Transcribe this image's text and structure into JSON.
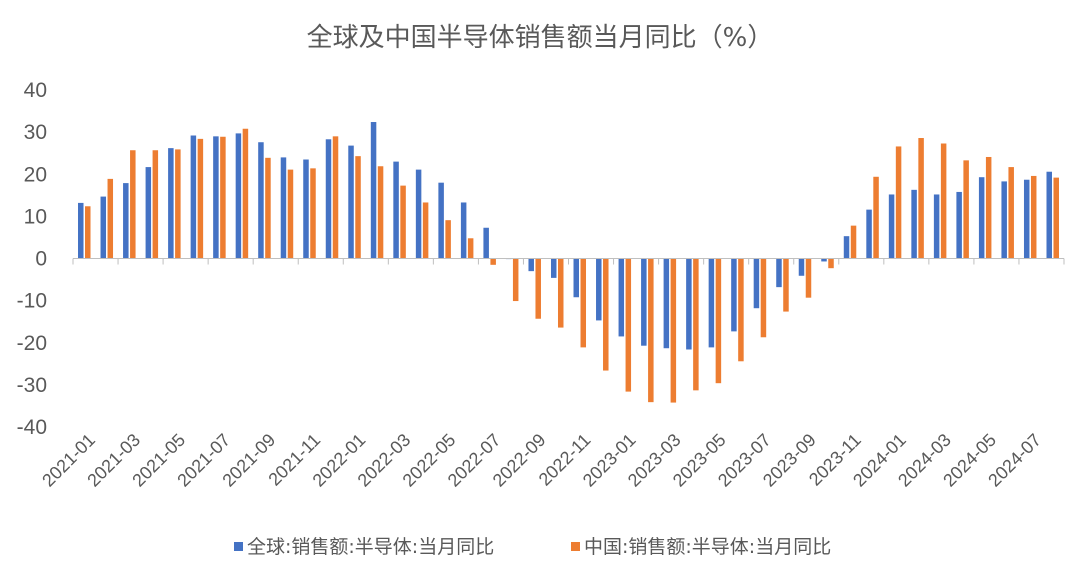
{
  "chart_data": {
    "type": "bar",
    "title": "全球及中国半导体销售额当月同比（%）",
    "xlabel": "",
    "ylabel": "",
    "ylim": [
      -40,
      40
    ],
    "yticks": [
      "40",
      "30",
      "20",
      "10",
      "0",
      "-10",
      "-20",
      "-30",
      "-40"
    ],
    "categories": [
      "2021-01",
      "2021-02",
      "2021-03",
      "2021-04",
      "2021-05",
      "2021-06",
      "2021-07",
      "2021-08",
      "2021-09",
      "2021-10",
      "2021-11",
      "2021-12",
      "2022-01",
      "2022-02",
      "2022-03",
      "2022-04",
      "2022-05",
      "2022-06",
      "2022-07",
      "2022-08",
      "2022-09",
      "2022-10",
      "2022-11",
      "2022-12",
      "2023-01",
      "2023-02",
      "2023-03",
      "2023-04",
      "2023-05",
      "2023-06",
      "2023-07",
      "2023-08",
      "2023-09",
      "2023-10",
      "2023-11",
      "2023-12",
      "2024-01",
      "2024-02",
      "2024-03",
      "2024-04",
      "2024-05",
      "2024-06",
      "2024-07",
      "2024-08"
    ],
    "xtick_labels": [
      "2021-01",
      "2021-03",
      "2021-05",
      "2021-07",
      "2021-09",
      "2021-11",
      "2022-01",
      "2022-03",
      "2022-05",
      "2022-07",
      "2022-09",
      "2022-11",
      "2023-01",
      "2023-03",
      "2023-05",
      "2023-07",
      "2023-09",
      "2023-11",
      "2024-01",
      "2024-03",
      "2024-05",
      "2024-07"
    ],
    "series": [
      {
        "name": "全球:销售额:半导体:当月同比",
        "color": "#4472C4",
        "values": [
          13.2,
          14.7,
          17.9,
          21.7,
          26.2,
          29.2,
          29.0,
          29.7,
          27.6,
          24.0,
          23.5,
          28.3,
          26.8,
          32.4,
          23.0,
          21.1,
          18.0,
          13.3,
          7.3,
          -0.1,
          -3.0,
          -4.6,
          -9.2,
          -14.7,
          -18.5,
          -20.7,
          -21.3,
          -21.6,
          -21.1,
          -17.3,
          -11.8,
          -6.8,
          -4.1,
          -0.7,
          5.3,
          11.6,
          15.2,
          16.3,
          15.2,
          15.8,
          19.3,
          18.3,
          18.7,
          20.6
        ]
      },
      {
        "name": "中国:销售额:半导体:当月同比",
        "color": "#ED7D31",
        "values": [
          12.4,
          18.9,
          25.7,
          25.7,
          25.9,
          28.4,
          28.9,
          30.8,
          23.9,
          21.1,
          21.4,
          29.0,
          24.3,
          21.9,
          17.3,
          13.3,
          9.1,
          4.8,
          -1.5,
          -10.1,
          -14.3,
          -16.4,
          -21.1,
          -26.6,
          -31.6,
          -34.1,
          -34.2,
          -31.3,
          -29.6,
          -24.4,
          -18.7,
          -12.6,
          -9.3,
          -2.3,
          7.8,
          19.4,
          26.6,
          28.6,
          27.3,
          23.3,
          24.1,
          21.7,
          19.6,
          19.2
        ]
      }
    ],
    "legend_position": "bottom",
    "grid": false
  }
}
